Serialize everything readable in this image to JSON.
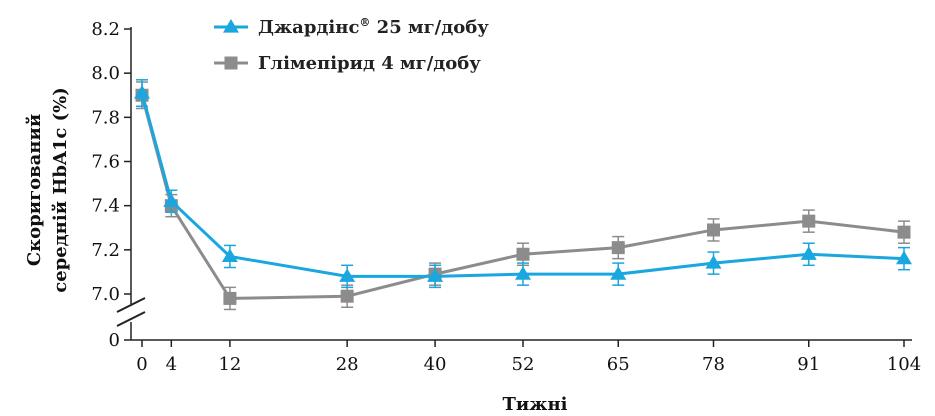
{
  "chart_data": {
    "type": "line",
    "xlabel": "Тижні",
    "ylabel_line1": "Скоригований",
    "ylabel_line2": "середній HbA1c (%)",
    "x": [
      0,
      4,
      12,
      28,
      40,
      52,
      65,
      78,
      91,
      104
    ],
    "x_tick_labels": [
      "0",
      "4",
      "12",
      "28",
      "40",
      "52",
      "65",
      "78",
      "91",
      "104"
    ],
    "y_tick_labels": [
      "8.2",
      "8.0",
      "7.8",
      "7.6",
      "7.4",
      "7.2",
      "7.0",
      "0"
    ],
    "y_ticks": [
      8.2,
      8.0,
      7.8,
      7.6,
      7.4,
      7.2,
      7.0
    ],
    "y_break_label": "0",
    "ylim": [
      7.0,
      8.2
    ],
    "axis_break": true,
    "grid": false,
    "legend_position": "top-left",
    "series": [
      {
        "name_main": "Джардінс",
        "name_sup": "®",
        "name_rest": " 25 мг/добу",
        "color": "#1aa6df",
        "marker": "triangle",
        "values": [
          7.91,
          7.42,
          7.17,
          7.08,
          7.08,
          7.09,
          7.09,
          7.14,
          7.18,
          7.16
        ],
        "error": [
          0.06,
          0.05,
          0.05,
          0.05,
          0.05,
          0.05,
          0.05,
          0.05,
          0.05,
          0.05
        ]
      },
      {
        "name_main": "Глімепірид 4 мг/добу",
        "name_sup": "",
        "name_rest": "",
        "color": "#8c8c8c",
        "marker": "square",
        "values": [
          7.9,
          7.4,
          6.98,
          6.99,
          7.09,
          7.18,
          7.21,
          7.29,
          7.33,
          7.28
        ],
        "error": [
          0.06,
          0.05,
          0.05,
          0.05,
          0.05,
          0.05,
          0.05,
          0.05,
          0.05,
          0.05
        ]
      }
    ]
  }
}
